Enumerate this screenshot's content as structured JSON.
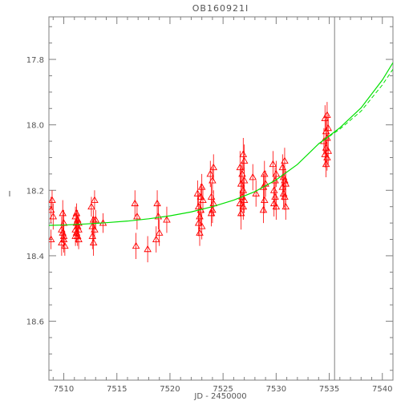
{
  "chart_data": {
    "type": "scatter",
    "title": "OB160921I",
    "xlabel": "JD - 2450000",
    "ylabel": "I",
    "xlim": [
      7508.6,
      7541.0
    ],
    "ylim": [
      18.78,
      17.67
    ],
    "y_inverted": true,
    "x_ticks": [
      7510,
      7515,
      7520,
      7525,
      7530,
      7535,
      7540
    ],
    "x_tick_labels": [
      "7510",
      "7515",
      "7520",
      "7525",
      "7530",
      "7535",
      "7540"
    ],
    "y_ticks": [
      17.8,
      18.0,
      18.2,
      18.4,
      18.6
    ],
    "y_tick_labels": [
      "17.8",
      "18.0",
      "18.2",
      "18.4",
      "18.6"
    ],
    "vertical_line_x": 7535.5,
    "grid": false,
    "colors": {
      "data": "#ff0000",
      "model": "#00e000",
      "frame": "#7f7f7f"
    },
    "series": [
      {
        "kind": "data-points",
        "marker": "open-triangle",
        "x": [
          7508.8,
          7508.8,
          7508.9,
          7509.0,
          7509.8,
          7509.8,
          7509.9,
          7509.9,
          7510.0,
          7510.0,
          7510.0,
          7510.1,
          7511.1,
          7511.1,
          7511.1,
          7511.2,
          7511.2,
          7511.2,
          7511.3,
          7511.3,
          7511.3,
          7511.4,
          7511.4,
          7511.4,
          7512.6,
          7512.7,
          7512.7,
          7512.8,
          7512.8,
          7512.9,
          7512.9,
          7513.0,
          7513.7,
          7516.7,
          7516.8,
          7516.9,
          7517.9,
          7518.7,
          7518.8,
          7518.9,
          7519.0,
          7519.7,
          7522.6,
          7522.7,
          7522.7,
          7522.8,
          7522.8,
          7522.9,
          7522.9,
          7523.0,
          7523.0,
          7523.1,
          7523.8,
          7523.9,
          7523.9,
          7524.0,
          7524.0,
          7524.1,
          7524.1,
          7526.6,
          7526.6,
          7526.7,
          7526.7,
          7526.8,
          7526.8,
          7526.9,
          7526.9,
          7526.9,
          7527.0,
          7527.0,
          7527.0,
          7527.8,
          7528.1,
          7528.8,
          7528.8,
          7528.9,
          7528.9,
          7529.0,
          7529.7,
          7529.8,
          7529.8,
          7529.9,
          7529.9,
          7530.0,
          7530.0,
          7530.6,
          7530.6,
          7530.7,
          7530.7,
          7530.8,
          7530.8,
          7530.8,
          7530.9,
          7530.9,
          7534.5,
          7534.6,
          7534.6,
          7534.7,
          7534.7,
          7534.7,
          7534.8,
          7534.8,
          7534.8,
          7534.9,
          7534.9
        ],
        "y": [
          18.26,
          18.35,
          18.23,
          18.28,
          18.32,
          18.36,
          18.27,
          18.33,
          18.35,
          18.3,
          18.34,
          18.37,
          18.28,
          18.32,
          18.34,
          18.27,
          18.3,
          18.33,
          18.31,
          18.34,
          18.29,
          18.32,
          18.35,
          18.3,
          18.25,
          18.31,
          18.34,
          18.29,
          18.36,
          18.23,
          18.32,
          18.29,
          18.3,
          18.24,
          18.37,
          18.28,
          18.38,
          18.35,
          18.24,
          18.28,
          18.33,
          18.29,
          18.21,
          18.25,
          18.3,
          18.33,
          18.28,
          18.22,
          18.26,
          18.19,
          18.31,
          18.23,
          18.15,
          18.27,
          18.22,
          18.17,
          18.26,
          18.24,
          18.13,
          18.13,
          18.24,
          18.18,
          18.27,
          18.15,
          18.22,
          18.09,
          18.2,
          18.25,
          18.11,
          18.23,
          18.17,
          18.16,
          18.21,
          18.19,
          18.26,
          18.15,
          18.23,
          18.18,
          18.12,
          18.2,
          18.24,
          18.17,
          18.22,
          18.15,
          18.25,
          18.13,
          18.19,
          18.16,
          18.21,
          18.17,
          18.22,
          18.11,
          18.18,
          18.25,
          18.05,
          17.98,
          18.09,
          18.02,
          18.07,
          18.12,
          17.97,
          18.04,
          18.1,
          18.01,
          18.08
        ],
        "errors": [
          0.04,
          0.03,
          0.03,
          0.04,
          0.04,
          0.04,
          0.04,
          0.03,
          0.04,
          0.04,
          0.04,
          0.03,
          0.03,
          0.03,
          0.03,
          0.03,
          0.03,
          0.03,
          0.03,
          0.03,
          0.03,
          0.03,
          0.03,
          0.03,
          0.03,
          0.03,
          0.04,
          0.03,
          0.04,
          0.03,
          0.03,
          0.03,
          0.03,
          0.04,
          0.04,
          0.04,
          0.04,
          0.04,
          0.04,
          0.04,
          0.04,
          0.04,
          0.04,
          0.04,
          0.04,
          0.04,
          0.04,
          0.04,
          0.04,
          0.04,
          0.04,
          0.04,
          0.04,
          0.04,
          0.04,
          0.04,
          0.04,
          0.04,
          0.04,
          0.05,
          0.04,
          0.05,
          0.05,
          0.04,
          0.04,
          0.05,
          0.04,
          0.04,
          0.05,
          0.04,
          0.04,
          0.04,
          0.04,
          0.04,
          0.04,
          0.04,
          0.04,
          0.04,
          0.04,
          0.04,
          0.04,
          0.04,
          0.04,
          0.04,
          0.04,
          0.04,
          0.04,
          0.04,
          0.04,
          0.04,
          0.04,
          0.04,
          0.04,
          0.04,
          0.04,
          0.04,
          0.04,
          0.04,
          0.04,
          0.04,
          0.04,
          0.04,
          0.04,
          0.04,
          0.04
        ]
      },
      {
        "kind": "model-solid",
        "x": [
          7508.6,
          7510,
          7512,
          7514,
          7516,
          7518,
          7520,
          7522,
          7524,
          7526,
          7528,
          7530,
          7532,
          7534,
          7536,
          7538,
          7540,
          7541.0
        ],
        "y": [
          18.307,
          18.306,
          18.303,
          18.299,
          18.294,
          18.287,
          18.278,
          18.266,
          18.25,
          18.23,
          18.204,
          18.168,
          18.121,
          18.058,
          18.009,
          17.948,
          17.863,
          17.81
        ]
      },
      {
        "kind": "model-dashed",
        "x": [
          7534,
          7536,
          7538,
          7540,
          7541.0
        ],
        "y": [
          18.058,
          18.013,
          17.958,
          17.878,
          17.83
        ]
      }
    ]
  }
}
